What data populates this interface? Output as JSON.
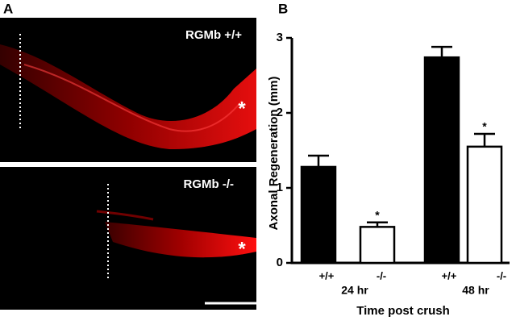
{
  "panel_a": {
    "label": "A",
    "images": [
      {
        "label": "RGMb +/+",
        "marker": "*"
      },
      {
        "label": "RGMb -/-",
        "marker": "*"
      }
    ]
  },
  "chart_data": {
    "type": "bar",
    "panel_label": "B",
    "ylabel": "Axonal Regeneration (mm)",
    "xlabel": "Time post crush",
    "groups": [
      "24 hr",
      "48 hr"
    ],
    "categories": [
      "+/+",
      "-/-",
      "+/+",
      "-/-"
    ],
    "values": [
      1.28,
      0.48,
      2.74,
      1.55
    ],
    "errors": [
      0.15,
      0.06,
      0.14,
      0.17
    ],
    "significance": [
      null,
      "*",
      null,
      "*"
    ],
    "colors": [
      "#000000",
      "#ffffff",
      "#000000",
      "#ffffff"
    ],
    "ylim": [
      0,
      3
    ],
    "yticks": [
      0,
      1,
      2,
      3
    ]
  }
}
